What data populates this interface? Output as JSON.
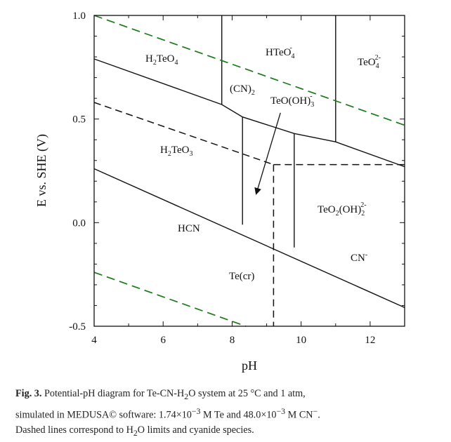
{
  "chart_data": {
    "type": "line",
    "title": "",
    "xlabel": "pH",
    "ylabel": "E vs. SHE (V)",
    "xlim": [
      4,
      13
    ],
    "ylim": [
      -0.5,
      1.0
    ],
    "xticks": [
      4,
      6,
      8,
      10,
      12
    ],
    "yticks": [
      -0.5,
      0.0,
      0.5,
      1.0
    ],
    "xtick_labels": [
      "4",
      "6",
      "8",
      "10",
      "12"
    ],
    "ytick_labels": [
      "-0.5",
      "0.0",
      "0.5",
      "1.0"
    ],
    "boundaries": [
      {
        "name": "upper-solid",
        "style": "solid",
        "x": [
          4.0,
          7.7,
          8.3,
          9.8,
          11.0,
          13.0
        ],
        "y": [
          0.79,
          0.57,
          0.51,
          0.43,
          0.39,
          0.27
        ]
      },
      {
        "name": "htc-hcn-lower",
        "style": "solid",
        "x": [
          4.0,
          13.0
        ],
        "y": [
          0.26,
          -0.41
        ]
      },
      {
        "name": "v-htc-htec",
        "style": "solid",
        "x": [
          7.7,
          7.7
        ],
        "y": [
          0.57,
          1.0
        ]
      },
      {
        "name": "v-htec-tec",
        "style": "solid",
        "x": [
          11.0,
          11.0
        ],
        "y": [
          0.39,
          1.0
        ]
      },
      {
        "name": "v-cn2-left",
        "style": "solid",
        "x": [
          8.3,
          8.3
        ],
        "y": [
          0.51,
          -0.01
        ]
      },
      {
        "name": "v-cn2-right",
        "style": "solid",
        "x": [
          9.8,
          9.8
        ],
        "y": [
          0.43,
          -0.12
        ]
      },
      {
        "name": "h2o-upper",
        "style": "dash-green",
        "x": [
          4.0,
          13.0
        ],
        "y": [
          1.0,
          0.47
        ]
      },
      {
        "name": "h2o-lower",
        "style": "dash-green",
        "x": [
          4.0,
          8.4
        ],
        "y": [
          -0.24,
          -0.5
        ]
      },
      {
        "name": "h2teo3-dashed",
        "style": "dash-black",
        "x": [
          4.0,
          9.2
        ],
        "y": [
          0.58,
          0.28
        ]
      },
      {
        "name": "cyanide-horizontal",
        "style": "dash-black",
        "x": [
          9.2,
          13.0
        ],
        "y": [
          0.28,
          0.28
        ]
      },
      {
        "name": "cyanide-vertical",
        "style": "dash-black",
        "x": [
          9.2,
          9.2
        ],
        "y": [
          0.28,
          -0.5
        ]
      }
    ],
    "arrow": {
      "from": [
        9.4,
        0.53
      ],
      "to": [
        8.7,
        0.14
      ]
    },
    "regions": [
      {
        "name": "h2teo4",
        "text": "H2TeO4",
        "x": 5.9,
        "y": 0.8
      },
      {
        "name": "hteo4",
        "text": "HTeO4-",
        "x": 9.3,
        "y": 0.84
      },
      {
        "name": "teo4",
        "text": "TeO42-",
        "x": 11.9,
        "y": 0.79
      },
      {
        "name": "cn2",
        "text": "(CN)2",
        "x": 8.3,
        "y": 0.66
      },
      {
        "name": "teooh3",
        "text": "TeO(OH)3-",
        "x": 9.8,
        "y": 0.6
      },
      {
        "name": "h2teo3",
        "text": "H2TeO3",
        "x": 6.0,
        "y": 0.36
      },
      {
        "name": "teo2oh2",
        "text": "TeO2(OH)22-",
        "x": 11.5,
        "y": 0.06
      },
      {
        "name": "hcn",
        "text": "HCN",
        "x": 6.8,
        "y": -0.02
      },
      {
        "name": "cn-ion",
        "text": "CN-",
        "x": 11.7,
        "y": -0.17
      },
      {
        "name": "te-cr",
        "text": "Te(cr)",
        "x": 8.4,
        "y": -0.26
      }
    ]
  },
  "regions_text": {
    "h2teo4": [
      "H",
      "2",
      "TeO",
      "4"
    ],
    "hteo4": [
      "HTeO",
      "4",
      "-"
    ],
    "teo4": [
      "TeO",
      "4",
      "2-"
    ],
    "cn2": [
      "(CN)",
      "2"
    ],
    "teooh3": [
      "TeO(OH)",
      "3",
      "-"
    ],
    "h2teo3": [
      "H",
      "2",
      "TeO",
      "3"
    ],
    "teo2oh2": [
      "TeO",
      "2",
      "(OH)",
      "2",
      "2-"
    ],
    "hcn": "HCN",
    "cn": [
      "CN",
      "-"
    ],
    "tecr": "Te(cr)"
  },
  "caption": {
    "label": "Fig. 3.",
    "line1": " Potential-pH diagram for Te-CN-H",
    "sub1": "2",
    "line1b": "O system at 25 °C and 1 atm,",
    "line2a": "simulated in MEDUSA© software: 1.74×10",
    "sup1": "−3",
    "line2b": " M Te and 48.0×10",
    "sup2": "−3",
    "line2c": " M CN",
    "sup3": "−",
    "line2d": ".",
    "line3a": "Dashed lines correspond to H",
    "sub2": "2",
    "line3b": "O limits and cyanide species."
  },
  "colors": {
    "axis": "#111111",
    "line": "#111111",
    "water": "#1a7a1a",
    "text": "#111111"
  }
}
